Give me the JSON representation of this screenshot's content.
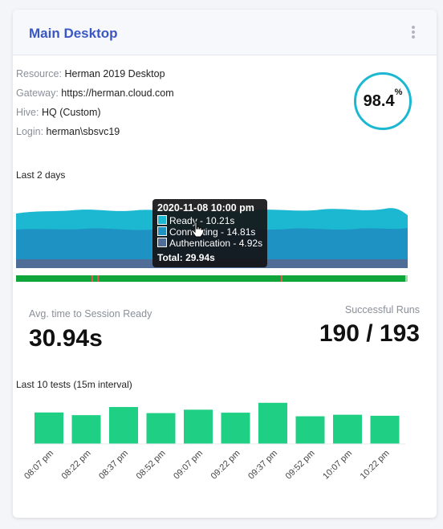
{
  "card": {
    "title": "Main Desktop",
    "menu_icon": "kebab-vertical-icon"
  },
  "details": {
    "resource_label": "Resource:",
    "resource_value": "Herman 2019 Desktop",
    "gateway_label": "Gateway:",
    "gateway_value": "https://herman.cloud.com",
    "hive_label": "Hive:",
    "hive_value": "HQ (Custom)",
    "login_label": "Login:",
    "login_value": "herman\\sbsvc19"
  },
  "success_rate": {
    "value": "98.4",
    "unit": "%",
    "ring_color": "#1cb8d2"
  },
  "history": {
    "label": "Last 2 days",
    "colors": {
      "ready": "#1cb8d2",
      "connecting": "#1f92c4",
      "authentication": "#4f6d96",
      "status_ok": "#0ea53b",
      "status_fail": "#e05555"
    },
    "tooltip": {
      "title": "2020-11-08 10:00 pm",
      "ready": "Ready - 10.21s",
      "connecting": "Connecting - 14.81s",
      "authentication": "Authentication - 4.92s",
      "total": "Total: 29.94s"
    }
  },
  "avg_session": {
    "label": "Avg. time to Session Ready",
    "value": "30.94s"
  },
  "successful_runs": {
    "label": "Successful Runs",
    "value": "190 / 193"
  },
  "recent_tests": {
    "label": "Last 10 tests (15m interval)",
    "bar_color": "#1ecf84"
  },
  "chart_data": [
    {
      "type": "area",
      "title": "Last 2 days",
      "series": [
        {
          "name": "Ready",
          "color": "#1cb8d2"
        },
        {
          "name": "Connecting",
          "color": "#1f92c4"
        },
        {
          "name": "Authentication",
          "color": "#4f6d96"
        }
      ],
      "highlighted_point": {
        "x": "2020-11-08 10:00 pm",
        "Ready": 10.21,
        "Connecting": 14.81,
        "Authentication": 4.92,
        "Total": 29.94
      }
    },
    {
      "type": "bar",
      "title": "Last 10 tests (15m interval)",
      "categories": [
        "08:07 pm",
        "08:22 pm",
        "08:37 pm",
        "08:52 pm",
        "09:07 pm",
        "09:22 pm",
        "09:37 pm",
        "09:52 pm",
        "10:07 pm",
        "10:22 pm"
      ],
      "values": [
        30.6,
        28.0,
        35.9,
        30.0,
        33.3,
        30.4,
        40.0,
        26.9,
        28.4,
        27.4
      ],
      "ylim": [
        0,
        50
      ],
      "grid": false
    }
  ]
}
